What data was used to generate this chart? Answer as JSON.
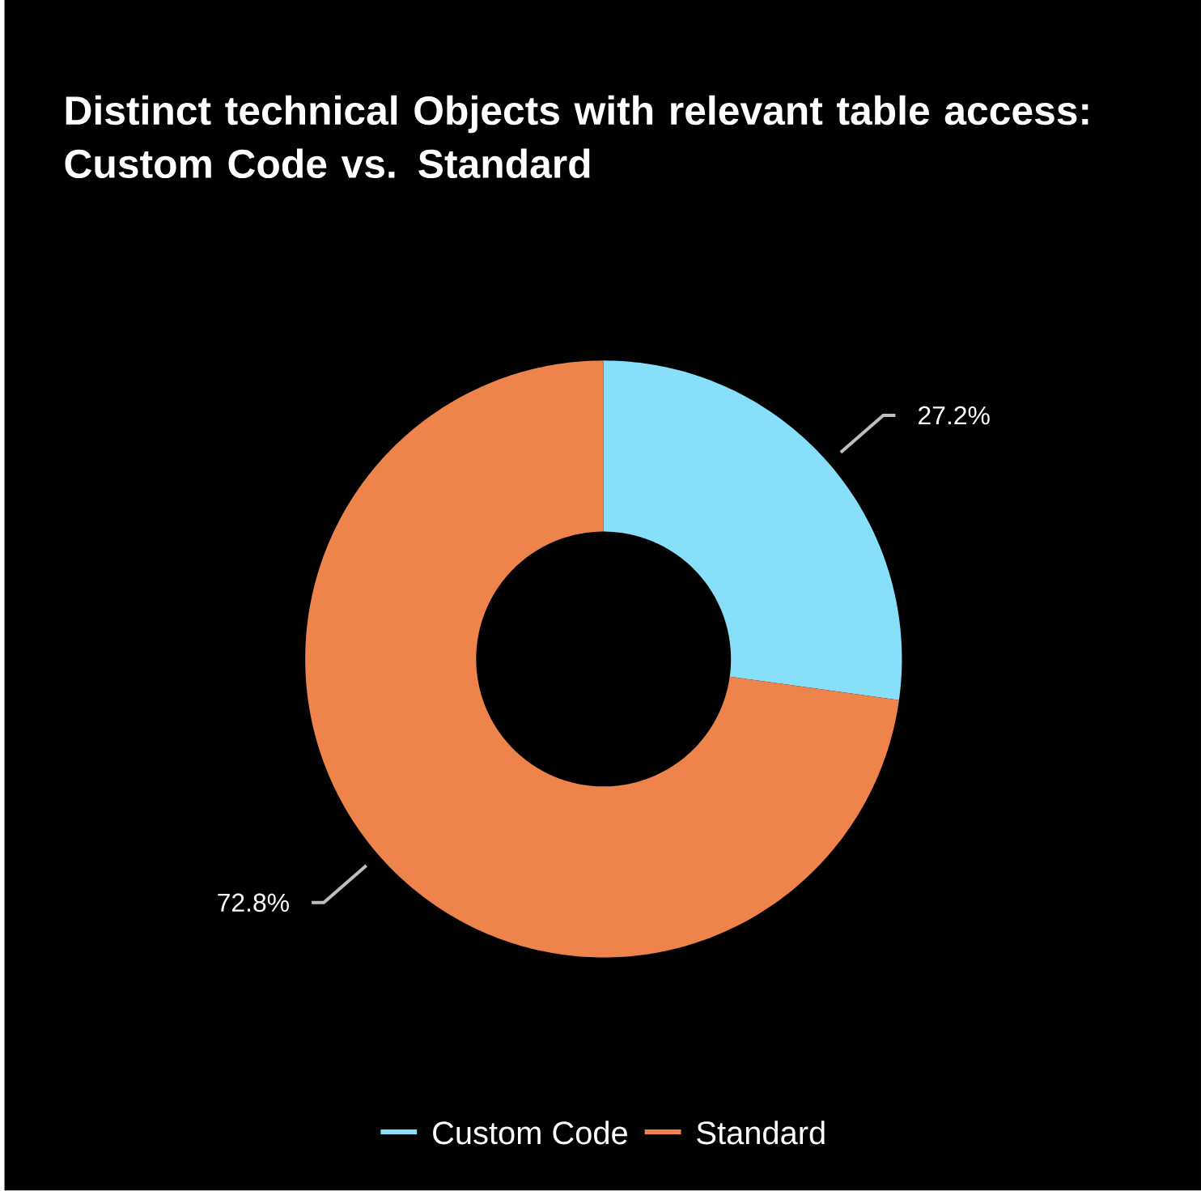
{
  "chart_data": {
    "type": "donut",
    "title": "Distinct technical Objects with relevant table access: Custom Code vs. Standard",
    "categories": [
      "Custom Code",
      "Standard"
    ],
    "values": [
      27.2,
      72.8
    ],
    "value_labels": [
      "27.2%",
      "72.8%"
    ],
    "colors": [
      "#87dffa",
      "#ee834c"
    ],
    "legend": "bottom"
  }
}
